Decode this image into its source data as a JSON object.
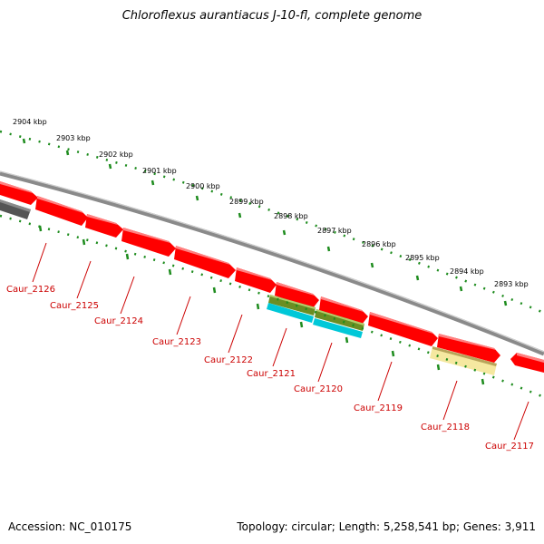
{
  "title": "Chloroflexus aurantiacus J-10-fl, complete genome",
  "footer": {
    "accession": "Accession: NC_010175",
    "stats": "Topology: circular; Length: 5,258,541 bp; Genes: 3,911"
  },
  "kbp_ticks": [
    "2904 kbp",
    "2903 kbp",
    "2902 kbp",
    "2901 kbp",
    "2900 kbp",
    "2899 kbp",
    "2898 kbp",
    "2897 kbp",
    "2896 kbp",
    "2895 kbp",
    "2894 kbp",
    "2893 kbp"
  ],
  "genes": [
    "Caur_2126",
    "Caur_2125",
    "Caur_2124",
    "Caur_2123",
    "Caur_2122",
    "Caur_2121",
    "Caur_2120",
    "Caur_2119",
    "Caur_2118",
    "Caur_2117"
  ],
  "colors": {
    "cds": "#ff0000",
    "cds_light": "#ff6a6a",
    "label": "#cc0000",
    "tick": "#1e8c1e",
    "backbone": "#8a8a8a",
    "gene_track": "#555555",
    "olive": "#6b8e23",
    "cyan": "#00c8d8",
    "pale_yellow": "#f5e8a0"
  }
}
